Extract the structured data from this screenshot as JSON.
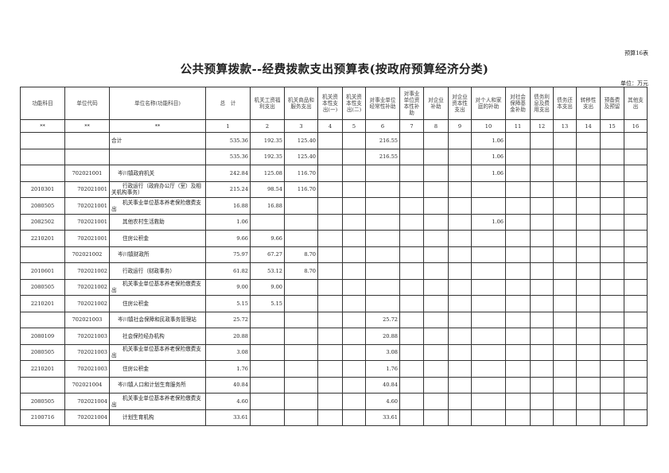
{
  "table_no": "预算16表",
  "title": "公共预算拨款--经费拨款支出预算表(按政府预算经济分类)",
  "unit": "单位：万元",
  "headers": [
    "功能科目",
    "单位代码",
    "单位名称(功能科目)",
    "总　计",
    "机关工资福利支出",
    "机关商品和服务支出",
    "机关资本性支出(一)",
    "机关资本性支出(二)",
    "对事业单位经常性补助",
    "对事业单位资本性补助",
    "对企业补助",
    "对企业资本性支出",
    "对个人和家庭的补助",
    "对社会保障基金补助",
    "债务利息及费用支出",
    "债务还本支出",
    "转移性支出",
    "预备费及预留",
    "其他支出"
  ],
  "index_row": [
    "**",
    "**",
    "**",
    "1",
    "2",
    "3",
    "4",
    "5",
    "6",
    "7",
    "8",
    "9",
    "10",
    "11",
    "12",
    "13",
    "14",
    "15",
    "16"
  ],
  "rows": [
    {
      "level": 0,
      "cells": [
        "",
        "",
        "合计",
        "535.36",
        "192.35",
        "125.40",
        "",
        "",
        "216.55",
        "",
        "",
        "",
        "1.06",
        "",
        "",
        "",
        "",
        "",
        ""
      ]
    },
    {
      "level": 0,
      "cells": [
        "",
        "",
        "",
        "535.36",
        "192.35",
        "125.40",
        "",
        "",
        "216.55",
        "",
        "",
        "",
        "1.06",
        "",
        "",
        "",
        "",
        "",
        ""
      ]
    },
    {
      "level": 1,
      "cells": [
        "",
        "702021001",
        "岑川镇政府机关",
        "242.84",
        "125.08",
        "116.70",
        "",
        "",
        "",
        "",
        "",
        "",
        "1.06",
        "",
        "",
        "",
        "",
        "",
        ""
      ]
    },
    {
      "level": 2,
      "cells": [
        "2010301",
        "702021001",
        "行政运行（政府办公厅（室）及相关机构事务）",
        "215.24",
        "98.54",
        "116.70",
        "",
        "",
        "",
        "",
        "",
        "",
        "",
        "",
        "",
        "",
        "",
        "",
        ""
      ]
    },
    {
      "level": 2,
      "cells": [
        "2080505",
        "702021001",
        "机关事业单位基本养老保险缴费支出",
        "16.88",
        "16.88",
        "",
        "",
        "",
        "",
        "",
        "",
        "",
        "",
        "",
        "",
        "",
        "",
        "",
        ""
      ]
    },
    {
      "level": 2,
      "cells": [
        "2082502",
        "702021001",
        "其他农村生活救助",
        "1.06",
        "",
        "",
        "",
        "",
        "",
        "",
        "",
        "",
        "1.06",
        "",
        "",
        "",
        "",
        "",
        ""
      ]
    },
    {
      "level": 2,
      "cells": [
        "2210201",
        "702021001",
        "住房公积金",
        "9.66",
        "9.66",
        "",
        "",
        "",
        "",
        "",
        "",
        "",
        "",
        "",
        "",
        "",
        "",
        "",
        ""
      ]
    },
    {
      "level": 1,
      "cells": [
        "",
        "702021002",
        "岑川镇财政所",
        "75.97",
        "67.27",
        "8.70",
        "",
        "",
        "",
        "",
        "",
        "",
        "",
        "",
        "",
        "",
        "",
        "",
        ""
      ]
    },
    {
      "level": 2,
      "cells": [
        "2010601",
        "702021002",
        "行政运行（财政事务）",
        "61.82",
        "53.12",
        "8.70",
        "",
        "",
        "",
        "",
        "",
        "",
        "",
        "",
        "",
        "",
        "",
        "",
        ""
      ]
    },
    {
      "level": 2,
      "cells": [
        "2080505",
        "702021002",
        "机关事业单位基本养老保险缴费支出",
        "9.00",
        "9.00",
        "",
        "",
        "",
        "",
        "",
        "",
        "",
        "",
        "",
        "",
        "",
        "",
        "",
        ""
      ]
    },
    {
      "level": 2,
      "cells": [
        "2210201",
        "702021002",
        "住房公积金",
        "5.15",
        "5.15",
        "",
        "",
        "",
        "",
        "",
        "",
        "",
        "",
        "",
        "",
        "",
        "",
        "",
        ""
      ]
    },
    {
      "level": 1,
      "cells": [
        "",
        "702021003",
        "岑川镇社会保障和民政事务管理站",
        "25.72",
        "",
        "",
        "",
        "",
        "25.72",
        "",
        "",
        "",
        "",
        "",
        "",
        "",
        "",
        "",
        ""
      ]
    },
    {
      "level": 2,
      "cells": [
        "2080109",
        "702021003",
        "社会保险经办机构",
        "20.88",
        "",
        "",
        "",
        "",
        "20.88",
        "",
        "",
        "",
        "",
        "",
        "",
        "",
        "",
        "",
        ""
      ]
    },
    {
      "level": 2,
      "cells": [
        "2080505",
        "702021003",
        "机关事业单位基本养老保险缴费支出",
        "3.08",
        "",
        "",
        "",
        "",
        "3.08",
        "",
        "",
        "",
        "",
        "",
        "",
        "",
        "",
        "",
        ""
      ]
    },
    {
      "level": 2,
      "cells": [
        "2210201",
        "702021003",
        "住房公积金",
        "1.76",
        "",
        "",
        "",
        "",
        "1.76",
        "",
        "",
        "",
        "",
        "",
        "",
        "",
        "",
        "",
        ""
      ]
    },
    {
      "level": 1,
      "cells": [
        "",
        "702021004",
        "岑川镇人口和计划生育服务所",
        "40.84",
        "",
        "",
        "",
        "",
        "40.84",
        "",
        "",
        "",
        "",
        "",
        "",
        "",
        "",
        "",
        ""
      ]
    },
    {
      "level": 2,
      "cells": [
        "2080505",
        "702021004",
        "机关事业单位基本养老保险缴费支出",
        "4.60",
        "",
        "",
        "",
        "",
        "4.60",
        "",
        "",
        "",
        "",
        "",
        "",
        "",
        "",
        "",
        ""
      ]
    },
    {
      "level": 2,
      "cells": [
        "2100716",
        "702021004",
        "计划生育机构",
        "33.61",
        "",
        "",
        "",
        "",
        "33.61",
        "",
        "",
        "",
        "",
        "",
        "",
        "",
        "",
        "",
        ""
      ]
    }
  ]
}
